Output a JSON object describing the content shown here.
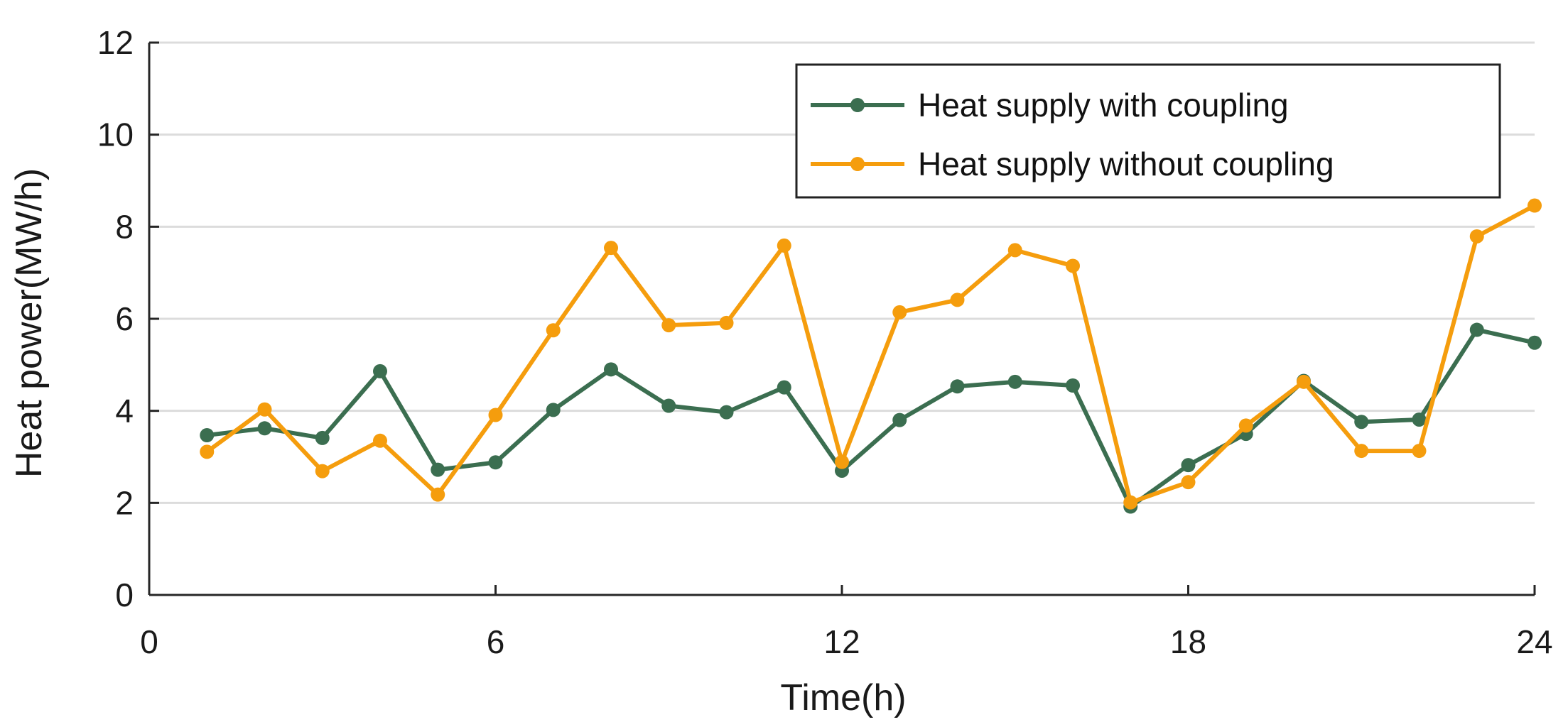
{
  "chart_data": {
    "type": "line",
    "title": "",
    "xlabel": "Time(h)",
    "ylabel": "Heat power(MW/h)",
    "xlim": [
      0,
      24
    ],
    "ylim": [
      0,
      12
    ],
    "xticks": [
      0,
      6,
      12,
      18,
      24
    ],
    "yticks": [
      0,
      2,
      4,
      6,
      8,
      10,
      12
    ],
    "grid": "horizontal",
    "legend_position": "top-right",
    "x": [
      1,
      2,
      3,
      4,
      5,
      6,
      7,
      8,
      9,
      10,
      11,
      12,
      13,
      14,
      15,
      16,
      17,
      18,
      19,
      20,
      21,
      22,
      23,
      24
    ],
    "series": [
      {
        "name": "Heat supply with coupling",
        "color": "#3b6e50",
        "values": [
          3.47,
          3.62,
          3.41,
          4.86,
          2.72,
          2.88,
          4.02,
          4.9,
          4.11,
          3.97,
          4.51,
          2.7,
          3.8,
          4.53,
          4.63,
          4.55,
          1.92,
          2.82,
          3.5,
          4.65,
          3.76,
          3.81,
          5.76,
          5.48
        ]
      },
      {
        "name": "Heat supply without coupling",
        "color": "#f59d0d",
        "values": [
          3.11,
          4.03,
          2.69,
          3.35,
          2.18,
          3.91,
          5.75,
          7.54,
          5.86,
          5.91,
          7.59,
          2.89,
          6.14,
          6.41,
          7.49,
          7.15,
          2.01,
          2.45,
          3.68,
          4.63,
          3.13,
          3.13,
          7.79,
          8.46
        ]
      }
    ]
  }
}
